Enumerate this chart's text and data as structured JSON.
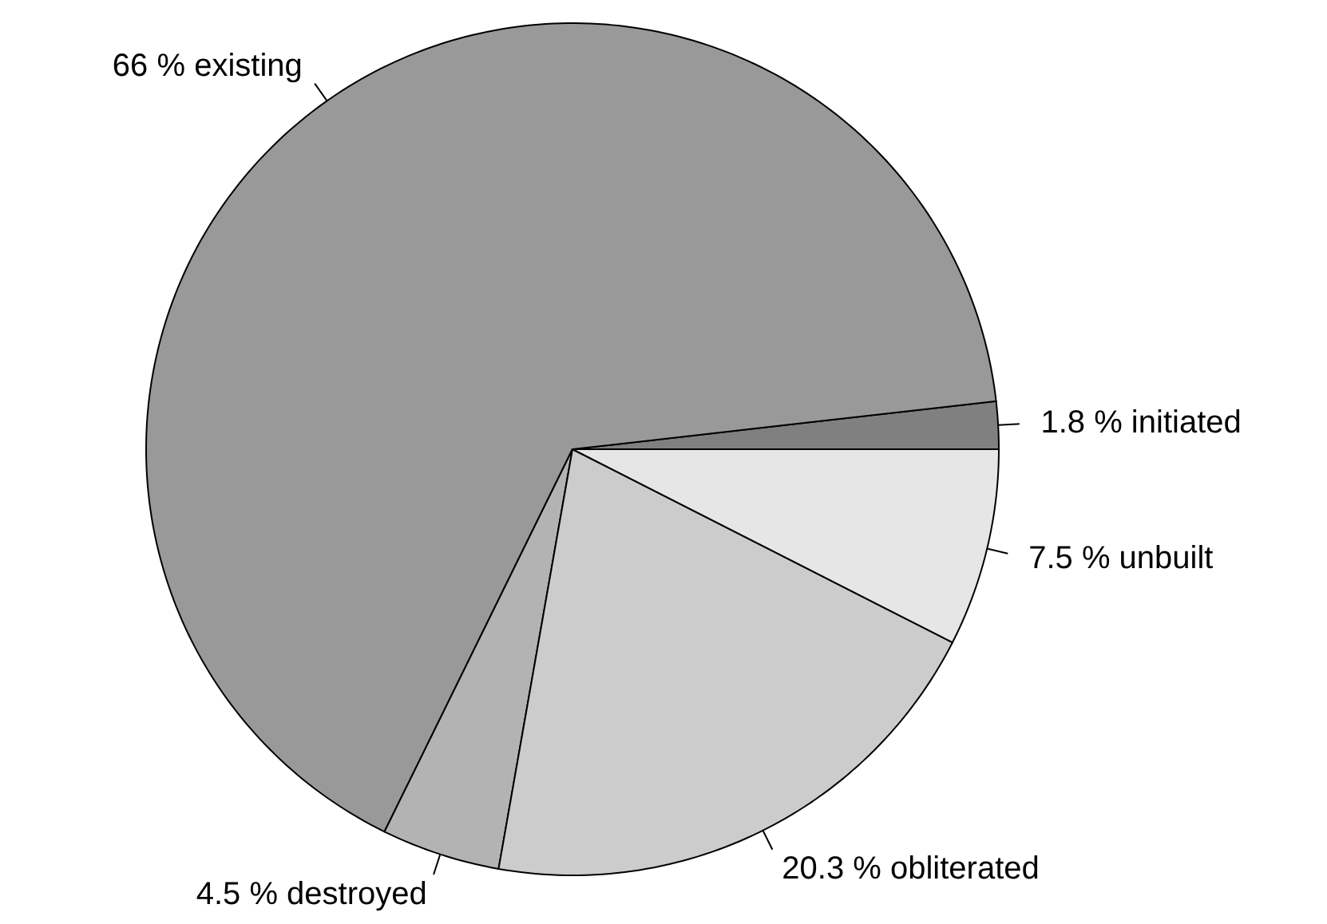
{
  "chart_data": {
    "type": "pie",
    "categories": [
      "1.8 % initiated",
      "66 % existing",
      "4.5 % destroyed",
      "20.3 % obliterated",
      "7.5 % unbuilt"
    ],
    "values": [
      1.8,
      66,
      4.5,
      20.3,
      7.5
    ],
    "colors": [
      "#808080",
      "#999999",
      "#b3b3b3",
      "#cccccc",
      "#e6e6e6"
    ]
  }
}
